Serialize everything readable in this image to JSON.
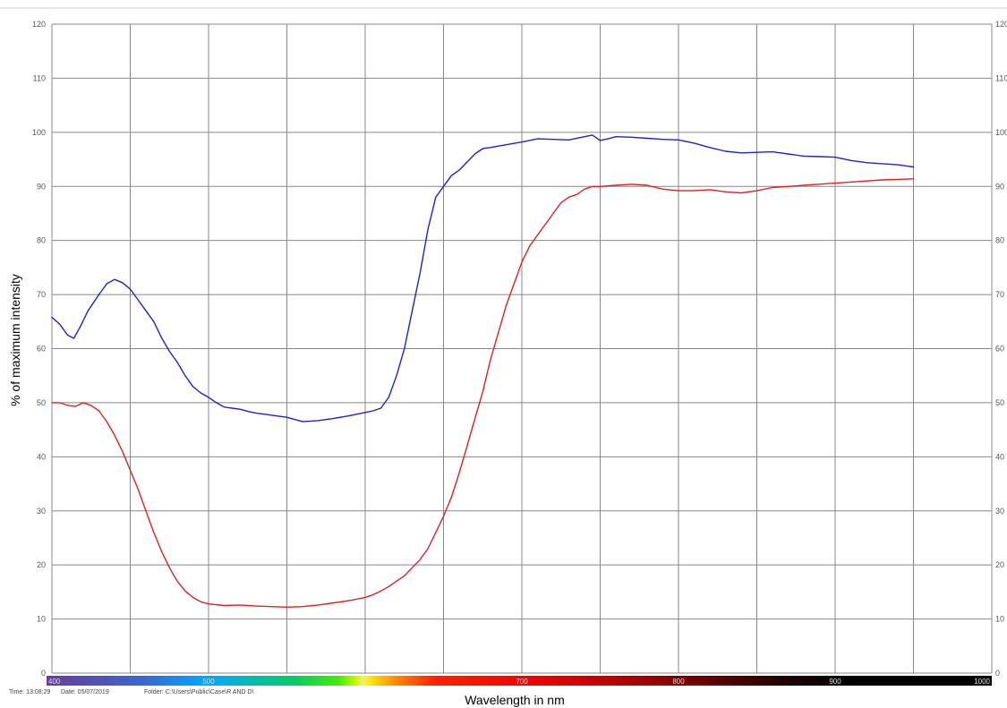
{
  "chart_data": {
    "type": "line",
    "title": "",
    "ylabel": "% of maximum intensity",
    "xlabel": "Wavelength in nm",
    "xlim": [
      400,
      1000
    ],
    "ylim": [
      0,
      120
    ],
    "x_ticks": [
      400,
      500,
      600,
      700,
      800,
      900,
      1000
    ],
    "y_ticks": [
      0,
      10,
      20,
      30,
      40,
      50,
      60,
      70,
      80,
      90,
      100,
      110,
      120
    ],
    "grid": true,
    "legend": "none",
    "series": [
      {
        "color": "#2222cc",
        "points": [
          [
            400,
            65.8
          ],
          [
            405,
            64.5
          ],
          [
            410,
            62.5
          ],
          [
            414,
            61.9
          ],
          [
            418,
            64
          ],
          [
            423,
            67
          ],
          [
            430,
            70
          ],
          [
            435,
            72
          ],
          [
            440,
            72.8
          ],
          [
            445,
            72.2
          ],
          [
            450,
            71
          ],
          [
            455,
            69
          ],
          [
            460,
            67
          ],
          [
            465,
            65
          ],
          [
            470,
            62
          ],
          [
            475,
            59.5
          ],
          [
            480,
            57.5
          ],
          [
            485,
            55
          ],
          [
            490,
            53
          ],
          [
            495,
            51.8
          ],
          [
            500,
            51
          ],
          [
            505,
            50
          ],
          [
            510,
            49.2
          ],
          [
            515,
            49
          ],
          [
            520,
            48.8
          ],
          [
            525,
            48.4
          ],
          [
            530,
            48.1
          ],
          [
            540,
            47.7
          ],
          [
            550,
            47.3
          ],
          [
            560,
            46.5
          ],
          [
            570,
            46.7
          ],
          [
            580,
            47.1
          ],
          [
            590,
            47.6
          ],
          [
            600,
            48.2
          ],
          [
            605,
            48.5
          ],
          [
            610,
            49
          ],
          [
            615,
            51
          ],
          [
            620,
            55
          ],
          [
            625,
            60
          ],
          [
            630,
            67
          ],
          [
            635,
            74
          ],
          [
            640,
            82
          ],
          [
            645,
            88
          ],
          [
            650,
            90
          ],
          [
            655,
            92
          ],
          [
            660,
            93
          ],
          [
            665,
            94.5
          ],
          [
            670,
            96
          ],
          [
            675,
            97
          ],
          [
            680,
            97.2
          ],
          [
            690,
            97.7
          ],
          [
            700,
            98.2
          ],
          [
            710,
            98.8
          ],
          [
            720,
            98.7
          ],
          [
            730,
            98.6
          ],
          [
            740,
            99.2
          ],
          [
            745,
            99.5
          ],
          [
            750,
            98.5
          ],
          [
            755,
            98.8
          ],
          [
            760,
            99.2
          ],
          [
            770,
            99.1
          ],
          [
            780,
            98.9
          ],
          [
            790,
            98.7
          ],
          [
            800,
            98.6
          ],
          [
            810,
            98
          ],
          [
            820,
            97.2
          ],
          [
            830,
            96.5
          ],
          [
            840,
            96.2
          ],
          [
            850,
            96.3
          ],
          [
            860,
            96.4
          ],
          [
            870,
            96
          ],
          [
            880,
            95.6
          ],
          [
            890,
            95.5
          ],
          [
            900,
            95.4
          ],
          [
            910,
            94.8
          ],
          [
            920,
            94.4
          ],
          [
            930,
            94.2
          ],
          [
            940,
            94
          ],
          [
            950,
            93.6
          ]
        ]
      },
      {
        "color": "#dd2222",
        "points": [
          [
            400,
            50
          ],
          [
            405,
            50
          ],
          [
            410,
            49.5
          ],
          [
            415,
            49.3
          ],
          [
            420,
            50
          ],
          [
            425,
            49.5
          ],
          [
            430,
            48.5
          ],
          [
            435,
            46.5
          ],
          [
            440,
            44
          ],
          [
            445,
            41
          ],
          [
            450,
            37.5
          ],
          [
            455,
            34
          ],
          [
            460,
            30
          ],
          [
            465,
            26
          ],
          [
            470,
            22.5
          ],
          [
            475,
            19.5
          ],
          [
            480,
            17
          ],
          [
            485,
            15.2
          ],
          [
            490,
            14
          ],
          [
            495,
            13.2
          ],
          [
            500,
            12.8
          ],
          [
            510,
            12.5
          ],
          [
            520,
            12.6
          ],
          [
            530,
            12.4
          ],
          [
            540,
            12.3
          ],
          [
            550,
            12.2
          ],
          [
            560,
            12.3
          ],
          [
            570,
            12.6
          ],
          [
            580,
            13
          ],
          [
            590,
            13.4
          ],
          [
            600,
            14
          ],
          [
            605,
            14.5
          ],
          [
            610,
            15.2
          ],
          [
            615,
            16
          ],
          [
            620,
            17
          ],
          [
            625,
            18
          ],
          [
            630,
            19.5
          ],
          [
            635,
            21
          ],
          [
            640,
            23
          ],
          [
            645,
            26
          ],
          [
            650,
            29
          ],
          [
            655,
            32.5
          ],
          [
            660,
            37
          ],
          [
            665,
            42
          ],
          [
            670,
            47
          ],
          [
            675,
            52
          ],
          [
            680,
            58
          ],
          [
            685,
            63
          ],
          [
            690,
            68
          ],
          [
            695,
            72
          ],
          [
            700,
            76
          ],
          [
            705,
            79
          ],
          [
            710,
            81
          ],
          [
            715,
            83
          ],
          [
            720,
            85
          ],
          [
            725,
            87
          ],
          [
            730,
            88
          ],
          [
            735,
            88.5
          ],
          [
            740,
            89.5
          ],
          [
            745,
            90
          ],
          [
            750,
            90
          ],
          [
            760,
            90.2
          ],
          [
            770,
            90.4
          ],
          [
            780,
            90.2
          ],
          [
            790,
            89.5
          ],
          [
            800,
            89.2
          ],
          [
            810,
            89.2
          ],
          [
            820,
            89.4
          ],
          [
            830,
            89
          ],
          [
            840,
            88.8
          ],
          [
            850,
            89.2
          ],
          [
            860,
            89.8
          ],
          [
            870,
            90
          ],
          [
            880,
            90.2
          ],
          [
            890,
            90.4
          ],
          [
            900,
            90.6
          ],
          [
            910,
            90.8
          ],
          [
            920,
            91
          ],
          [
            930,
            91.2
          ],
          [
            940,
            91.3
          ],
          [
            950,
            91.4
          ]
        ]
      }
    ],
    "spectrum_ticks": [
      "400",
      "500",
      "600",
      "700",
      "800",
      "900",
      "1000"
    ]
  },
  "footer": {
    "time": "Time: 13:08:29",
    "date": "Date: 05/07/2019",
    "folder": "Folder: C:\\Users\\Public\\Case\\R AND D\\"
  },
  "colors": {
    "grid": "#888888",
    "spectrum": [
      "#6a3d9a",
      "#3366cc",
      "#00aaff",
      "#00cc66",
      "#44ee00",
      "#ffff00",
      "#ff8800",
      "#ff2200",
      "#ee0000",
      "#cc0000",
      "#880000",
      "#330000",
      "#000000"
    ]
  }
}
